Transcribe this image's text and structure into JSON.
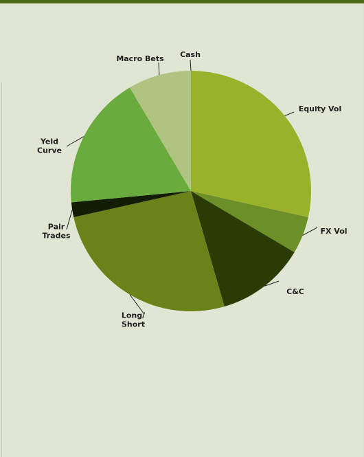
{
  "chart_data": {
    "type": "pie",
    "title": "",
    "legend": "none",
    "start_angle_deg": 0,
    "direction": "clockwise",
    "slices": [
      {
        "label": "Equity Vol",
        "value": 28.5,
        "color": "#9ab12c"
      },
      {
        "label": "FX Vol",
        "value": 5.0,
        "color": "#6d8f27"
      },
      {
        "label": "C&C",
        "value": 12.0,
        "color": "#2a3c04"
      },
      {
        "label": "Long/\nShort",
        "value": 26.0,
        "color": "#6b821b"
      },
      {
        "label": "Pair\nTrades",
        "value": 2.0,
        "color": "#131d06"
      },
      {
        "label": "Yeld\nCurve",
        "value": 18.0,
        "color": "#6aab3d"
      },
      {
        "label": "Macro Bets",
        "value": 8.5,
        "color": "#b0c482"
      },
      {
        "label": "Cash",
        "value": 0.0,
        "color": "#9ab12c"
      }
    ]
  }
}
